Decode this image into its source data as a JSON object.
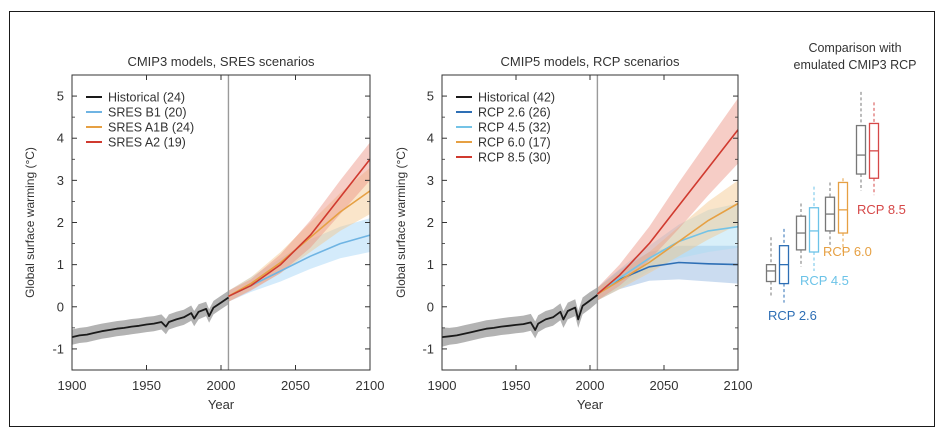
{
  "chart_data": [
    {
      "type": "line",
      "title": "CMIP3 models, SRES scenarios",
      "xlabel": "Year",
      "ylabel": "Global surface warming (°C)",
      "xlim": [
        1900,
        2100
      ],
      "ylim": [
        -1.5,
        5.5
      ],
      "xticks": [
        1900,
        1950,
        2000,
        2050,
        2100
      ],
      "yticks": [
        -1,
        0,
        1,
        2,
        3,
        4,
        5
      ],
      "vline_year": 2005,
      "legend_position": "top-left",
      "series": [
        {
          "name": "Historical (24)",
          "color": "#1a1a1a",
          "band_color": "#9a9a9a",
          "x": [
            1900,
            1905,
            1910,
            1915,
            1920,
            1925,
            1930,
            1935,
            1940,
            1945,
            1950,
            1955,
            1960,
            1963,
            1965,
            1970,
            1975,
            1980,
            1982,
            1985,
            1990,
            1992,
            1995,
            2000,
            2005
          ],
          "y": [
            -0.72,
            -0.68,
            -0.66,
            -0.62,
            -0.58,
            -0.55,
            -0.52,
            -0.5,
            -0.47,
            -0.45,
            -0.42,
            -0.4,
            -0.36,
            -0.47,
            -0.36,
            -0.3,
            -0.25,
            -0.15,
            -0.28,
            -0.12,
            -0.05,
            -0.22,
            -0.02,
            0.1,
            0.22
          ],
          "lower": [
            -0.9,
            -0.86,
            -0.84,
            -0.8,
            -0.76,
            -0.73,
            -0.7,
            -0.68,
            -0.65,
            -0.63,
            -0.6,
            -0.58,
            -0.54,
            -0.65,
            -0.54,
            -0.48,
            -0.43,
            -0.33,
            -0.46,
            -0.3,
            -0.22,
            -0.38,
            -0.18,
            -0.06,
            0.06
          ],
          "upper": [
            -0.54,
            -0.5,
            -0.48,
            -0.44,
            -0.4,
            -0.37,
            -0.34,
            -0.32,
            -0.29,
            -0.27,
            -0.24,
            -0.22,
            -0.18,
            -0.29,
            -0.18,
            -0.12,
            -0.07,
            0.03,
            -0.1,
            0.06,
            0.12,
            -0.06,
            0.14,
            0.26,
            0.38
          ]
        },
        {
          "name": "SRES B1 (20)",
          "color": "#6fb4e3",
          "band_color": "#9fd3f6",
          "x": [
            2005,
            2020,
            2040,
            2060,
            2080,
            2100
          ],
          "y": [
            0.25,
            0.5,
            0.85,
            1.2,
            1.5,
            1.7
          ],
          "lower": [
            0.12,
            0.35,
            0.6,
            0.9,
            1.15,
            1.3
          ],
          "upper": [
            0.38,
            0.7,
            1.15,
            1.6,
            1.9,
            2.1
          ]
        },
        {
          "name": "SRES A1B (24)",
          "color": "#e6a043",
          "band_color": "#f3c58a",
          "x": [
            2005,
            2020,
            2040,
            2060,
            2080,
            2100
          ],
          "y": [
            0.25,
            0.55,
            1.05,
            1.65,
            2.25,
            2.75
          ],
          "lower": [
            0.12,
            0.4,
            0.8,
            1.3,
            1.8,
            2.2
          ],
          "upper": [
            0.38,
            0.7,
            1.3,
            2.0,
            2.7,
            3.3
          ]
        },
        {
          "name": "SRES A2 (19)",
          "color": "#d03a2f",
          "band_color": "#eb9080",
          "x": [
            2005,
            2020,
            2040,
            2060,
            2080,
            2100
          ],
          "y": [
            0.25,
            0.5,
            1.0,
            1.7,
            2.6,
            3.5
          ],
          "lower": [
            0.12,
            0.38,
            0.8,
            1.4,
            2.2,
            3.0
          ],
          "upper": [
            0.38,
            0.65,
            1.25,
            2.05,
            3.0,
            3.9
          ]
        }
      ]
    },
    {
      "type": "line",
      "title": "CMIP5 models, RCP scenarios",
      "xlabel": "Year",
      "ylabel": "Global surface warming (°C)",
      "xlim": [
        1900,
        2100
      ],
      "ylim": [
        -1.5,
        5.5
      ],
      "xticks": [
        1900,
        1950,
        2000,
        2050,
        2100
      ],
      "yticks": [
        -1,
        0,
        1,
        2,
        3,
        4,
        5
      ],
      "vline_year": 2005,
      "legend_position": "top-left",
      "series": [
        {
          "name": "Historical (42)",
          "color": "#1a1a1a",
          "band_color": "#9a9a9a",
          "x": [
            1900,
            1905,
            1910,
            1915,
            1920,
            1925,
            1930,
            1935,
            1940,
            1945,
            1950,
            1955,
            1960,
            1963,
            1965,
            1970,
            1975,
            1980,
            1982,
            1985,
            1990,
            1992,
            1995,
            2000,
            2005
          ],
          "y": [
            -0.72,
            -0.7,
            -0.68,
            -0.64,
            -0.6,
            -0.56,
            -0.52,
            -0.5,
            -0.47,
            -0.45,
            -0.43,
            -0.41,
            -0.37,
            -0.55,
            -0.4,
            -0.3,
            -0.25,
            -0.12,
            -0.3,
            -0.1,
            -0.02,
            -0.3,
            0.02,
            0.15,
            0.28
          ],
          "lower": [
            -0.95,
            -0.9,
            -0.88,
            -0.84,
            -0.8,
            -0.76,
            -0.72,
            -0.7,
            -0.67,
            -0.65,
            -0.63,
            -0.61,
            -0.57,
            -0.75,
            -0.6,
            -0.5,
            -0.45,
            -0.32,
            -0.5,
            -0.3,
            -0.22,
            -0.5,
            -0.18,
            -0.05,
            0.1
          ],
          "upper": [
            -0.49,
            -0.5,
            -0.48,
            -0.44,
            -0.4,
            -0.36,
            -0.32,
            -0.3,
            -0.27,
            -0.25,
            -0.23,
            -0.21,
            -0.17,
            -0.35,
            -0.2,
            -0.1,
            -0.05,
            0.08,
            -0.1,
            0.1,
            0.18,
            -0.1,
            0.22,
            0.35,
            0.46
          ]
        },
        {
          "name": "RCP 2.6 (26)",
          "color": "#2e6fb5",
          "band_color": "#8cb2de",
          "x": [
            2005,
            2020,
            2040,
            2060,
            2080,
            2100
          ],
          "y": [
            0.3,
            0.65,
            0.95,
            1.05,
            1.02,
            1.0
          ],
          "lower": [
            0.15,
            0.42,
            0.62,
            0.65,
            0.6,
            0.55
          ],
          "upper": [
            0.45,
            0.88,
            1.3,
            1.45,
            1.45,
            1.45
          ]
        },
        {
          "name": "RCP 4.5 (32)",
          "color": "#74c3e6",
          "band_color": "#a8dcf2",
          "x": [
            2005,
            2020,
            2040,
            2060,
            2080,
            2100
          ],
          "y": [
            0.3,
            0.68,
            1.15,
            1.55,
            1.8,
            1.9
          ],
          "lower": [
            0.15,
            0.45,
            0.85,
            1.15,
            1.3,
            1.4
          ],
          "upper": [
            0.45,
            0.9,
            1.45,
            1.95,
            2.3,
            2.45
          ]
        },
        {
          "name": "RCP 6.0 (17)",
          "color": "#e6a043",
          "band_color": "#f3c58a",
          "x": [
            2005,
            2020,
            2040,
            2060,
            2080,
            2100
          ],
          "y": [
            0.3,
            0.62,
            1.05,
            1.55,
            2.05,
            2.45
          ],
          "lower": [
            0.15,
            0.42,
            0.8,
            1.2,
            1.6,
            1.95
          ],
          "upper": [
            0.45,
            0.82,
            1.3,
            1.9,
            2.5,
            3.0
          ]
        },
        {
          "name": "RCP 8.5 (30)",
          "color": "#d03a2f",
          "band_color": "#eb9080",
          "x": [
            2005,
            2020,
            2040,
            2060,
            2080,
            2100
          ],
          "y": [
            0.3,
            0.75,
            1.5,
            2.4,
            3.3,
            4.2
          ],
          "lower": [
            0.15,
            0.5,
            1.1,
            1.85,
            2.65,
            3.4
          ],
          "upper": [
            0.45,
            1.0,
            1.9,
            2.95,
            3.95,
            4.95
          ]
        }
      ]
    },
    {
      "type": "box",
      "title": "Comparison with emulated CMIP3 RCP",
      "title_lines": [
        "Comparison with",
        "emulated CMIP3 RCP"
      ],
      "ylim": [
        -1.5,
        5.5
      ],
      "groups": [
        {
          "label": "RCP 2.6",
          "color": "#2e6fb5",
          "boxes": [
            {
              "style": "cmip3",
              "color": "#777777",
              "min": 0.25,
              "q1": 0.6,
              "median": 0.85,
              "q3": 1.0,
              "max": 1.65
            },
            {
              "style": "cmip5",
              "color": "#2e6fb5",
              "min": 0.1,
              "q1": 0.55,
              "median": 1.0,
              "q3": 1.45,
              "max": 1.85
            }
          ]
        },
        {
          "label": "RCP 4.5",
          "color": "#6cc3e8",
          "boxes": [
            {
              "style": "cmip3",
              "color": "#777777",
              "min": 0.95,
              "q1": 1.35,
              "median": 1.75,
              "q3": 2.15,
              "max": 2.45
            },
            {
              "style": "cmip5",
              "color": "#6cc3e8",
              "min": 0.85,
              "q1": 1.3,
              "median": 1.8,
              "q3": 2.35,
              "max": 2.85
            }
          ]
        },
        {
          "label": "RCP 6.0",
          "color": "#e6a043",
          "boxes": [
            {
              "style": "cmip3",
              "color": "#777777",
              "min": 1.45,
              "q1": 1.8,
              "median": 2.2,
              "q3": 2.6,
              "max": 2.95
            },
            {
              "style": "cmip5",
              "color": "#e6a043",
              "min": 1.3,
              "q1": 1.75,
              "median": 2.3,
              "q3": 2.95,
              "max": 3.05
            }
          ]
        },
        {
          "label": "RCP 8.5",
          "color": "#d64848",
          "boxes": [
            {
              "style": "cmip3",
              "color": "#777777",
              "min": 2.75,
              "q1": 3.15,
              "median": 3.6,
              "q3": 4.3,
              "max": 5.1
            },
            {
              "style": "cmip5",
              "color": "#d64848",
              "min": 2.65,
              "q1": 3.05,
              "median": 3.7,
              "q3": 4.35,
              "max": 4.85
            }
          ]
        }
      ]
    }
  ]
}
